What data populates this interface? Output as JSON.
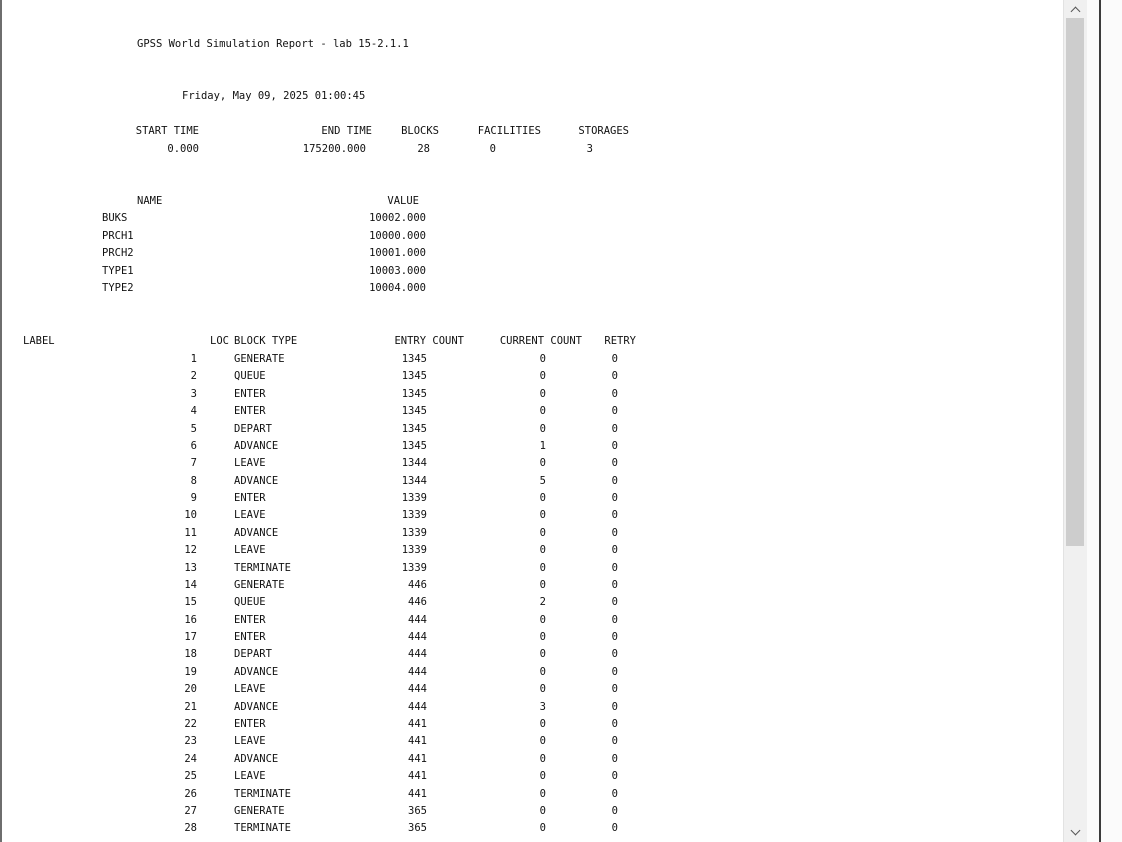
{
  "report": {
    "title": "GPSS World Simulation Report - lab 15-2.1.1",
    "datetime": "Friday, May 09, 2025 01:00:45",
    "summary_headers": {
      "start_time": "START TIME",
      "end_time": "END TIME",
      "blocks": "BLOCKS",
      "facilities": "FACILITIES",
      "storages": "STORAGES"
    },
    "summary_values": {
      "start_time": "0.000",
      "end_time": "175200.000",
      "blocks": "28",
      "facilities": "0",
      "storages": "3"
    },
    "names_headers": {
      "name": "NAME",
      "value": "VALUE"
    },
    "names": [
      {
        "name": "BUKS",
        "value": "10002.000"
      },
      {
        "name": "PRCH1",
        "value": "10000.000"
      },
      {
        "name": "PRCH2",
        "value": "10001.000"
      },
      {
        "name": "TYPE1",
        "value": "10003.000"
      },
      {
        "name": "TYPE2",
        "value": "10004.000"
      }
    ],
    "block_headers": {
      "label": "LABEL",
      "loc": "LOC",
      "block_type": "BLOCK TYPE",
      "entry_count": "ENTRY COUNT",
      "current_count": "CURRENT COUNT",
      "retry": "RETRY"
    },
    "blocks": [
      {
        "loc": "1",
        "type": "GENERATE",
        "entry": "1345",
        "current": "0",
        "retry": "0"
      },
      {
        "loc": "2",
        "type": "QUEUE",
        "entry": "1345",
        "current": "0",
        "retry": "0"
      },
      {
        "loc": "3",
        "type": "ENTER",
        "entry": "1345",
        "current": "0",
        "retry": "0"
      },
      {
        "loc": "4",
        "type": "ENTER",
        "entry": "1345",
        "current": "0",
        "retry": "0"
      },
      {
        "loc": "5",
        "type": "DEPART",
        "entry": "1345",
        "current": "0",
        "retry": "0"
      },
      {
        "loc": "6",
        "type": "ADVANCE",
        "entry": "1345",
        "current": "1",
        "retry": "0"
      },
      {
        "loc": "7",
        "type": "LEAVE",
        "entry": "1344",
        "current": "0",
        "retry": "0"
      },
      {
        "loc": "8",
        "type": "ADVANCE",
        "entry": "1344",
        "current": "5",
        "retry": "0"
      },
      {
        "loc": "9",
        "type": "ENTER",
        "entry": "1339",
        "current": "0",
        "retry": "0"
      },
      {
        "loc": "10",
        "type": "LEAVE",
        "entry": "1339",
        "current": "0",
        "retry": "0"
      },
      {
        "loc": "11",
        "type": "ADVANCE",
        "entry": "1339",
        "current": "0",
        "retry": "0"
      },
      {
        "loc": "12",
        "type": "LEAVE",
        "entry": "1339",
        "current": "0",
        "retry": "0"
      },
      {
        "loc": "13",
        "type": "TERMINATE",
        "entry": "1339",
        "current": "0",
        "retry": "0"
      },
      {
        "loc": "14",
        "type": "GENERATE",
        "entry": "446",
        "current": "0",
        "retry": "0"
      },
      {
        "loc": "15",
        "type": "QUEUE",
        "entry": "446",
        "current": "2",
        "retry": "0"
      },
      {
        "loc": "16",
        "type": "ENTER",
        "entry": "444",
        "current": "0",
        "retry": "0"
      },
      {
        "loc": "17",
        "type": "ENTER",
        "entry": "444",
        "current": "0",
        "retry": "0"
      },
      {
        "loc": "18",
        "type": "DEPART",
        "entry": "444",
        "current": "0",
        "retry": "0"
      },
      {
        "loc": "19",
        "type": "ADVANCE",
        "entry": "444",
        "current": "0",
        "retry": "0"
      },
      {
        "loc": "20",
        "type": "LEAVE",
        "entry": "444",
        "current": "0",
        "retry": "0"
      },
      {
        "loc": "21",
        "type": "ADVANCE",
        "entry": "444",
        "current": "3",
        "retry": "0"
      },
      {
        "loc": "22",
        "type": "ENTER",
        "entry": "441",
        "current": "0",
        "retry": "0"
      },
      {
        "loc": "23",
        "type": "LEAVE",
        "entry": "441",
        "current": "0",
        "retry": "0"
      },
      {
        "loc": "24",
        "type": "ADVANCE",
        "entry": "441",
        "current": "0",
        "retry": "0"
      },
      {
        "loc": "25",
        "type": "LEAVE",
        "entry": "441",
        "current": "0",
        "retry": "0"
      },
      {
        "loc": "26",
        "type": "TERMINATE",
        "entry": "441",
        "current": "0",
        "retry": "0"
      },
      {
        "loc": "27",
        "type": "GENERATE",
        "entry": "365",
        "current": "0",
        "retry": "0"
      },
      {
        "loc": "28",
        "type": "TERMINATE",
        "entry": "365",
        "current": "0",
        "retry": "0"
      }
    ]
  },
  "scrollbar": {
    "up_icon": "chevron-up-icon",
    "down_icon": "chevron-down-icon",
    "scroll_position": 0.0
  }
}
